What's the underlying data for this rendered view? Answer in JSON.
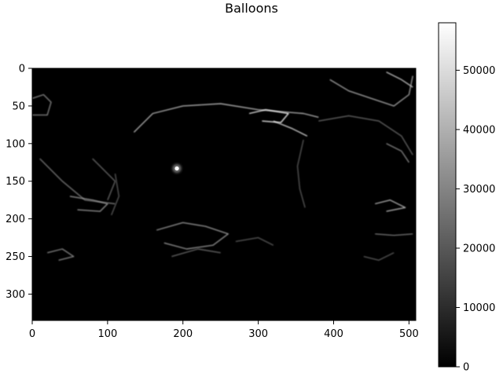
{
  "chart_data": {
    "type": "heatmap",
    "title": "Balloons",
    "xlabel": "",
    "ylabel": "",
    "colormap": "gray",
    "image_shape": [
      335,
      509
    ],
    "xlim": [
      0,
      509
    ],
    "ylim": [
      335,
      0
    ],
    "x_ticks": [
      0,
      100,
      200,
      300,
      400,
      500
    ],
    "y_ticks": [
      0,
      50,
      100,
      150,
      200,
      250,
      300
    ],
    "colorbar": {
      "min": 0,
      "max": 58000,
      "ticks": [
        0,
        10000,
        20000,
        30000,
        40000,
        50000
      ]
    },
    "grid": false,
    "features": [
      {
        "kind": "bright_spot",
        "x": 192,
        "y": 133,
        "value": 58000
      },
      {
        "kind": "edge",
        "points": [
          [
            135,
            85
          ],
          [
            160,
            60
          ],
          [
            200,
            50
          ],
          [
            250,
            47
          ],
          [
            300,
            55
          ],
          [
            360,
            60
          ],
          [
            380,
            65
          ]
        ],
        "value": 12000
      },
      {
        "kind": "edge",
        "points": [
          [
            320,
            70
          ],
          [
            345,
            80
          ],
          [
            365,
            90
          ]
        ],
        "value": 14000
      },
      {
        "kind": "edge",
        "points": [
          [
            380,
            70
          ],
          [
            420,
            63
          ],
          [
            460,
            70
          ],
          [
            490,
            90
          ],
          [
            505,
            115
          ]
        ],
        "value": 7000
      },
      {
        "kind": "edge",
        "points": [
          [
            360,
            95
          ],
          [
            352,
            130
          ],
          [
            355,
            160
          ],
          [
            362,
            185
          ]
        ],
        "value": 6000
      },
      {
        "kind": "edge",
        "points": [
          [
            288,
            60
          ],
          [
            310,
            55
          ],
          [
            340,
            60
          ],
          [
            330,
            72
          ],
          [
            305,
            70
          ]
        ],
        "value": 16000
      },
      {
        "kind": "edge",
        "points": [
          [
            395,
            15
          ],
          [
            420,
            30
          ],
          [
            450,
            40
          ],
          [
            480,
            50
          ],
          [
            500,
            35
          ],
          [
            505,
            10
          ]
        ],
        "value": 11000
      },
      {
        "kind": "edge",
        "points": [
          [
            470,
            5
          ],
          [
            490,
            15
          ],
          [
            505,
            25
          ]
        ],
        "value": 13000
      },
      {
        "kind": "edge",
        "points": [
          [
            0,
            40
          ],
          [
            15,
            35
          ],
          [
            25,
            45
          ],
          [
            20,
            62
          ],
          [
            0,
            62
          ]
        ],
        "value": 9000
      },
      {
        "kind": "edge",
        "points": [
          [
            10,
            120
          ],
          [
            40,
            150
          ],
          [
            70,
            175
          ],
          [
            110,
            180
          ]
        ],
        "value": 8000
      },
      {
        "kind": "edge",
        "points": [
          [
            50,
            170
          ],
          [
            80,
            175
          ],
          [
            100,
            180
          ],
          [
            90,
            190
          ],
          [
            60,
            188
          ]
        ],
        "value": 10000
      },
      {
        "kind": "edge",
        "points": [
          [
            80,
            120
          ],
          [
            110,
            150
          ],
          [
            100,
            175
          ]
        ],
        "value": 7000
      },
      {
        "kind": "edge",
        "points": [
          [
            20,
            245
          ],
          [
            40,
            240
          ],
          [
            55,
            250
          ],
          [
            35,
            255
          ]
        ],
        "value": 9000
      },
      {
        "kind": "edge",
        "points": [
          [
            165,
            215
          ],
          [
            200,
            205
          ],
          [
            230,
            210
          ],
          [
            260,
            220
          ],
          [
            240,
            235
          ],
          [
            205,
            240
          ],
          [
            175,
            232
          ]
        ],
        "value": 10000
      },
      {
        "kind": "edge",
        "points": [
          [
            185,
            250
          ],
          [
            220,
            240
          ],
          [
            250,
            245
          ]
        ],
        "value": 7000
      },
      {
        "kind": "edge",
        "points": [
          [
            110,
            140
          ],
          [
            115,
            170
          ],
          [
            105,
            195
          ]
        ],
        "value": 6000
      },
      {
        "kind": "edge",
        "points": [
          [
            455,
            180
          ],
          [
            475,
            175
          ],
          [
            495,
            185
          ],
          [
            470,
            190
          ]
        ],
        "value": 12000
      },
      {
        "kind": "edge",
        "points": [
          [
            455,
            220
          ],
          [
            480,
            222
          ],
          [
            505,
            220
          ]
        ],
        "value": 8000
      },
      {
        "kind": "edge",
        "points": [
          [
            440,
            250
          ],
          [
            460,
            255
          ],
          [
            480,
            245
          ]
        ],
        "value": 6000
      },
      {
        "kind": "edge",
        "points": [
          [
            470,
            100
          ],
          [
            490,
            110
          ],
          [
            500,
            125
          ]
        ],
        "value": 9000
      },
      {
        "kind": "edge",
        "points": [
          [
            270,
            230
          ],
          [
            300,
            225
          ],
          [
            320,
            235
          ]
        ],
        "value": 6000
      }
    ]
  }
}
